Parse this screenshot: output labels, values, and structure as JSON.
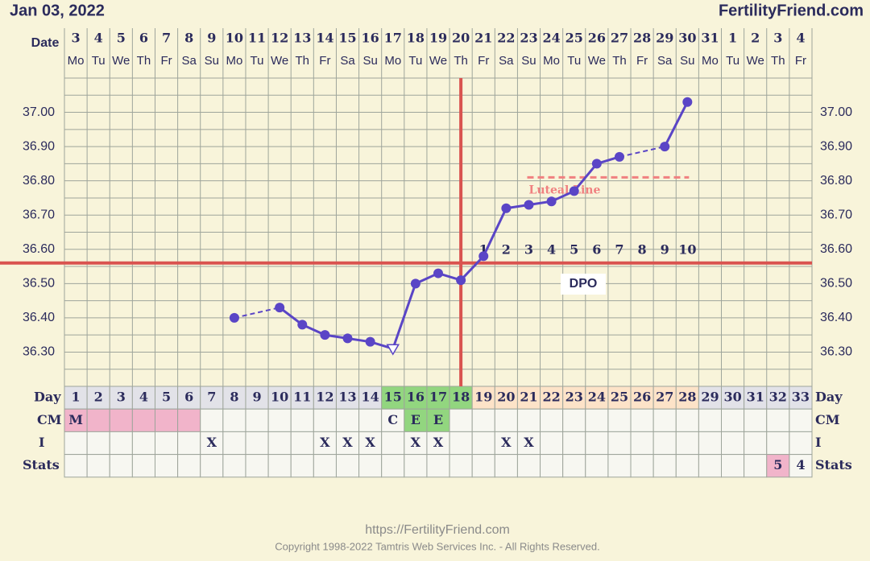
{
  "chart_data": {
    "type": "line",
    "title": "Jan 03, 2022",
    "brand": "FertilityFriend.com",
    "footer_url": "https://FertilityFriend.com",
    "footer_copyright": "Copyright 1998-2022 Tamtris Web Services Inc. - All Rights Reserved.",
    "date_label": "Date",
    "dates": [
      "3",
      "4",
      "5",
      "6",
      "7",
      "8",
      "9",
      "10",
      "11",
      "12",
      "13",
      "14",
      "15",
      "16",
      "17",
      "18",
      "19",
      "20",
      "21",
      "22",
      "23",
      "24",
      "25",
      "26",
      "27",
      "28",
      "29",
      "30",
      "31",
      "1",
      "2",
      "3",
      "4"
    ],
    "weekdays": [
      "Mo",
      "Tu",
      "We",
      "Th",
      "Fr",
      "Sa",
      "Su",
      "Mo",
      "Tu",
      "We",
      "Th",
      "Fr",
      "Sa",
      "Su",
      "Mo",
      "Tu",
      "We",
      "Th",
      "Fr",
      "Sa",
      "Su",
      "Mo",
      "Tu",
      "We",
      "Th",
      "Fr",
      "Sa",
      "Su",
      "Mo",
      "Tu",
      "We",
      "Th",
      "Fr"
    ],
    "categories": [
      1,
      2,
      3,
      4,
      5,
      6,
      7,
      8,
      9,
      10,
      11,
      12,
      13,
      14,
      15,
      16,
      17,
      18,
      19,
      20,
      21,
      22,
      23,
      24,
      25,
      26,
      27,
      28,
      29,
      30,
      31,
      32,
      33
    ],
    "values": [
      null,
      null,
      null,
      null,
      null,
      null,
      null,
      36.4,
      null,
      36.43,
      36.38,
      36.35,
      36.34,
      36.33,
      36.31,
      36.5,
      36.53,
      36.51,
      36.58,
      36.72,
      36.73,
      36.74,
      36.77,
      36.85,
      36.87,
      null,
      36.9,
      37.03,
      null,
      null,
      null,
      null,
      null
    ],
    "open_markers": [
      14
    ],
    "color": "#5a45c6",
    "ylim": [
      36.2,
      37.1
    ],
    "yticks": [
      {
        "value": 36.3,
        "label": "36.30"
      },
      {
        "value": 36.4,
        "label": "36.40"
      },
      {
        "value": 36.5,
        "label": "36.50"
      },
      {
        "value": 36.6,
        "label": "36.60"
      },
      {
        "value": 36.7,
        "label": "36.70"
      },
      {
        "value": 36.8,
        "label": "36.80"
      },
      {
        "value": 36.9,
        "label": "36.90"
      },
      {
        "value": 37.0,
        "label": "37.00"
      }
    ],
    "minor_yticks": [
      36.25,
      36.35,
      36.45,
      36.55,
      36.65,
      36.75,
      36.85,
      36.95,
      37.05
    ],
    "grid": true,
    "coverline": 36.56,
    "ovulation_day": 18,
    "marker_color": "#d9534f",
    "luteal_line": {
      "label": "Luteal Line",
      "value": 36.81,
      "from_day": 21,
      "to_day": 28,
      "color": "#f08080"
    },
    "dpo": {
      "label": "DPO",
      "start_day": 19,
      "numbers": [
        1,
        2,
        3,
        4,
        5,
        6,
        7,
        8,
        9,
        10
      ]
    },
    "row_labels": {
      "day": "Day",
      "cm": "CM",
      "i": "I",
      "stats": "Stats"
    },
    "cm": [
      "M",
      null,
      null,
      null,
      null,
      null,
      null,
      null,
      null,
      null,
      null,
      null,
      null,
      null,
      "C",
      "E",
      "E",
      null,
      null,
      null,
      null,
      null,
      null,
      null,
      null,
      null,
      null,
      null,
      null,
      null,
      null,
      null,
      null
    ],
    "intercourse": [
      null,
      null,
      null,
      null,
      null,
      null,
      "X",
      null,
      null,
      null,
      null,
      "X",
      "X",
      "X",
      null,
      "X",
      "X",
      null,
      null,
      "X",
      "X",
      null,
      null,
      null,
      null,
      null,
      null,
      null,
      null,
      null,
      null,
      null,
      null
    ],
    "stats": [
      null,
      null,
      null,
      null,
      null,
      null,
      null,
      null,
      null,
      null,
      null,
      null,
      null,
      null,
      null,
      null,
      null,
      null,
      null,
      null,
      null,
      null,
      null,
      null,
      null,
      null,
      null,
      null,
      null,
      null,
      null,
      "5",
      "4"
    ],
    "day_colors": [
      {
        "from": 1,
        "to": 14,
        "color": "#e2e2e8"
      },
      {
        "from": 15,
        "to": 18,
        "color": "#92d67f"
      },
      {
        "from": 19,
        "to": 28,
        "color": "#fde3c8"
      },
      {
        "from": 29,
        "to": 33,
        "color": "#e2e2e8"
      }
    ],
    "cm_colors": [
      {
        "from": 1,
        "to": 6,
        "color": "#f1b4ca"
      },
      {
        "from": 16,
        "to": 17,
        "color": "#92d67f"
      }
    ],
    "stats_colors": [
      {
        "from": 32,
        "to": 32,
        "color": "#f1b4ca"
      }
    ]
  }
}
